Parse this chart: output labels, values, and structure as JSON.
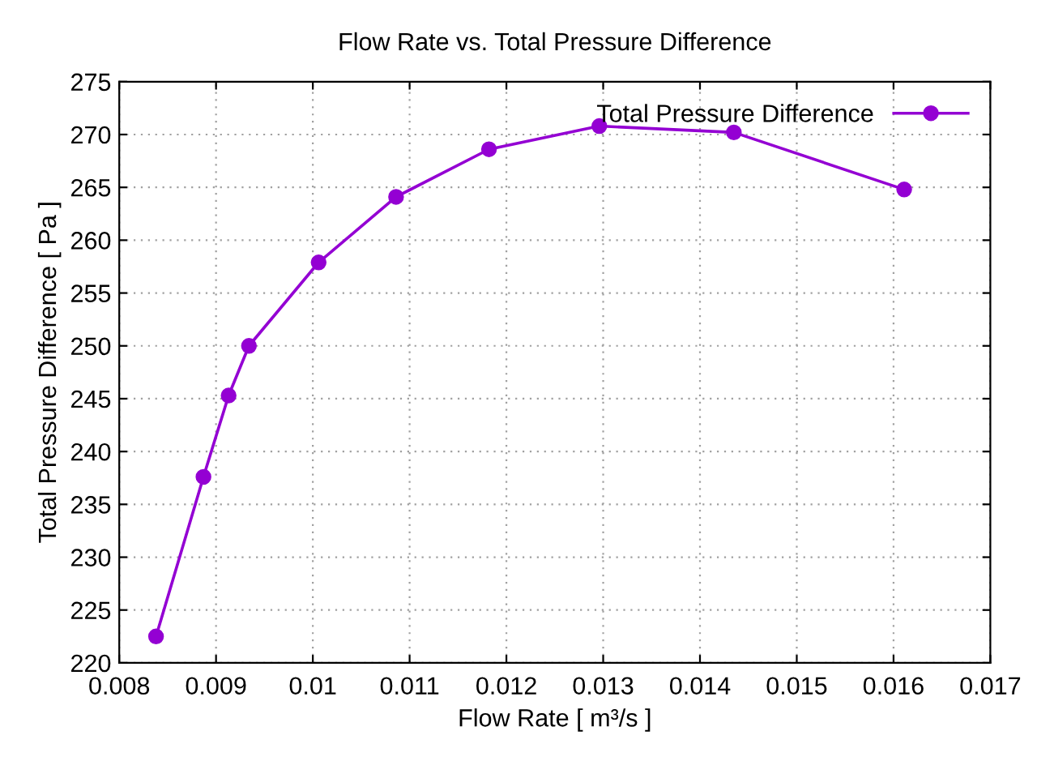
{
  "chart_data": {
    "type": "line",
    "title": "Flow Rate vs. Total Pressure Difference",
    "xlabel": "Flow Rate [ m³/s ]",
    "ylabel": "Total Pressure Difference [ Pa ]",
    "x": [
      0.00838,
      0.00887,
      0.00913,
      0.00934,
      0.01006,
      0.01086,
      0.01182,
      0.01296,
      0.01435,
      0.01611
    ],
    "series": [
      {
        "name": "Total Pressure Difference",
        "color": "#9400d3",
        "values": [
          222.5,
          237.6,
          245.3,
          250.0,
          257.9,
          264.1,
          268.6,
          270.8,
          270.2,
          264.8
        ]
      }
    ],
    "xlim": [
      0.008,
      0.017
    ],
    "xticks": [
      0.008,
      0.009,
      0.01,
      0.011,
      0.012,
      0.013,
      0.014,
      0.015,
      0.016,
      0.017
    ],
    "ylim": [
      220,
      275
    ],
    "yticks": [
      220,
      225,
      230,
      235,
      240,
      245,
      250,
      255,
      260,
      265,
      270,
      275
    ],
    "grid": true,
    "legend": "top right",
    "marker": "circle",
    "line_style": "solid"
  }
}
